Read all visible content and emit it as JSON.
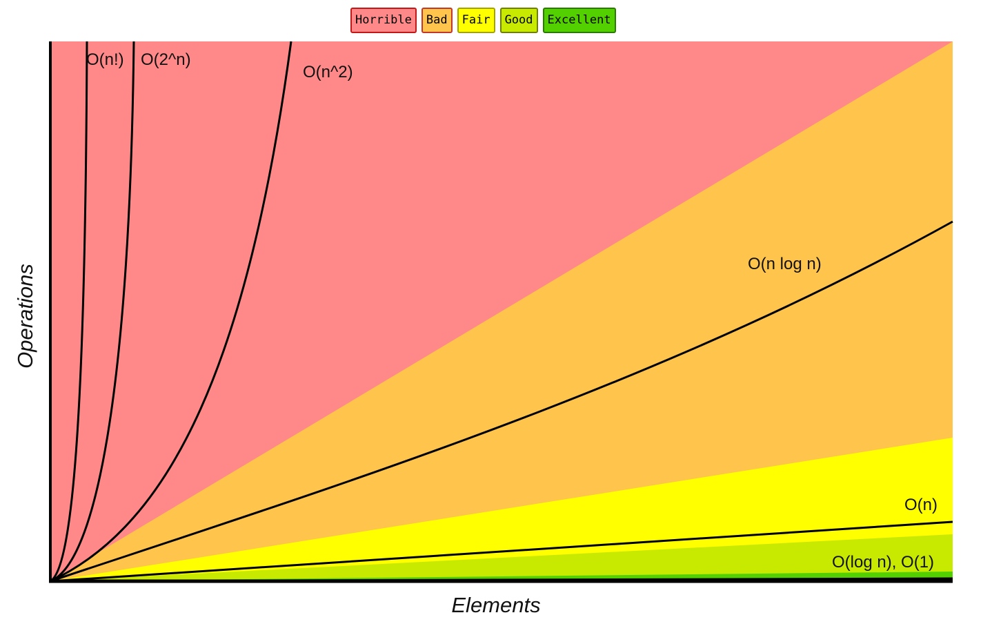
{
  "legend": [
    {
      "label": "Horrible",
      "color": "#ff8989",
      "border": "#c31818"
    },
    {
      "label": "Bad",
      "color": "#fec44c",
      "border": "#c0392b"
    },
    {
      "label": "Fair",
      "color": "#ffff00",
      "border": "#a3a300"
    },
    {
      "label": "Good",
      "color": "#c8ea00",
      "border": "#6f7f00"
    },
    {
      "label": "Excellent",
      "color": "#53d000",
      "border": "#2b7a00"
    }
  ],
  "chart_data": {
    "type": "area",
    "xlabel": "Elements",
    "ylabel": "Operations",
    "grid": false,
    "legend_position": "top-center",
    "regions": [
      {
        "name": "Horrible",
        "color": "#ff8989"
      },
      {
        "name": "Bad",
        "color": "#fec44c"
      },
      {
        "name": "Fair",
        "color": "#ffff00"
      },
      {
        "name": "Good",
        "color": "#c8ea00"
      },
      {
        "name": "Excellent",
        "color": "#53d000"
      }
    ],
    "curves": [
      {
        "label": "O(n!)",
        "function": "factorial"
      },
      {
        "label": "O(2^n)",
        "function": "exponential"
      },
      {
        "label": "O(n^2)",
        "function": "quadratic"
      },
      {
        "label": "O(n log n)",
        "function": "linearithmic"
      },
      {
        "label": "O(n)",
        "function": "linear"
      },
      {
        "label": "O(log n), O(1)",
        "function": "logarithmic-constant"
      }
    ]
  }
}
